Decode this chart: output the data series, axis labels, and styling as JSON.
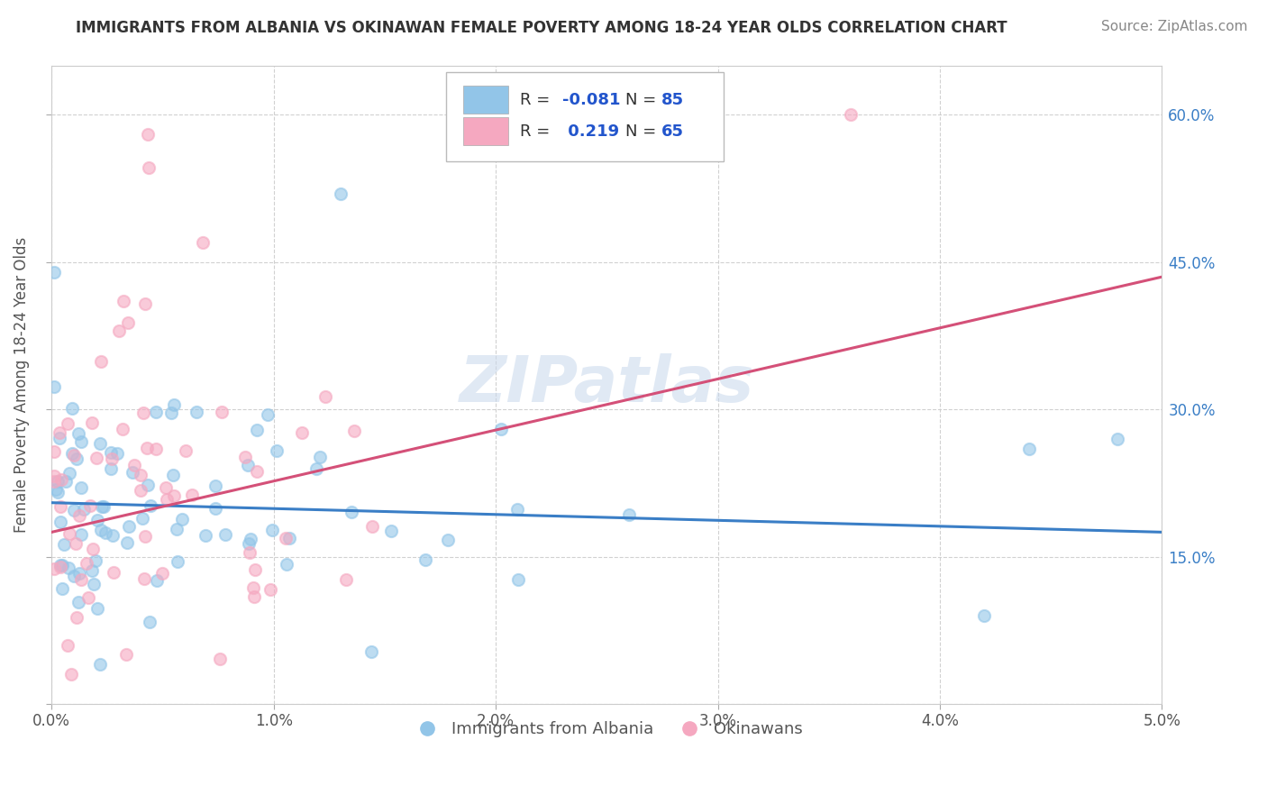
{
  "title": "IMMIGRANTS FROM ALBANIA VS OKINAWAN FEMALE POVERTY AMONG 18-24 YEAR OLDS CORRELATION CHART",
  "source": "Source: ZipAtlas.com",
  "ylabel": "Female Poverty Among 18-24 Year Olds",
  "xlim": [
    0.0,
    0.05
  ],
  "ylim": [
    0.0,
    0.65
  ],
  "xticks": [
    0.0,
    0.01,
    0.02,
    0.03,
    0.04,
    0.05
  ],
  "xticklabels": [
    "0.0%",
    "1.0%",
    "2.0%",
    "3.0%",
    "4.0%",
    "5.0%"
  ],
  "yticks": [
    0.0,
    0.15,
    0.3,
    0.45,
    0.6
  ],
  "yticklabels_right": [
    "",
    "15.0%",
    "30.0%",
    "45.0%",
    "60.0%"
  ],
  "blue_color": "#92C5E8",
  "pink_color": "#F5A8C0",
  "trend_blue": "#3A7EC6",
  "trend_pink": "#D45078",
  "legend_R_blue": "-0.081",
  "legend_N_blue": "85",
  "legend_R_pink": "0.219",
  "legend_N_pink": "65",
  "blue_label": "Immigrants from Albania",
  "pink_label": "Okinawans",
  "watermark": "ZIPatlas",
  "blue_trend_x": [
    0.0,
    0.05
  ],
  "blue_trend_y": [
    0.205,
    0.175
  ],
  "pink_trend_x": [
    0.0,
    0.05
  ],
  "pink_trend_y": [
    0.175,
    0.435
  ]
}
